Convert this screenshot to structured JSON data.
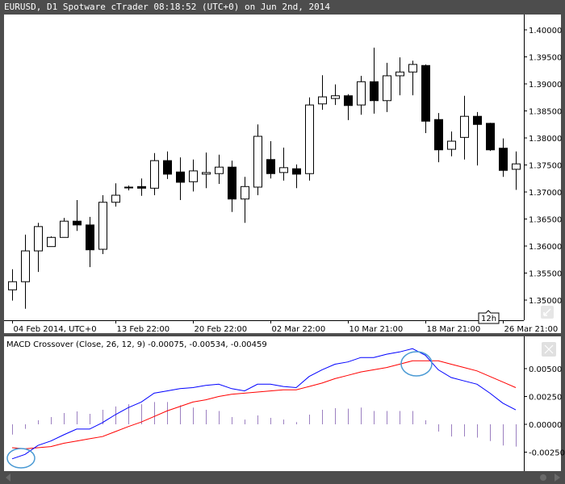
{
  "window": {
    "title": "EURUSD, D1 Spotware cTrader 08:18:52 (UTC+0) on Jun 2nd, 2014"
  },
  "colors": {
    "frame": "#4d4d4d",
    "bullish_body": "#ffffff",
    "bearish_body": "#000000",
    "macd_line": "#0000ff",
    "signal_line": "#ff0000",
    "histogram": "#9b7fc0",
    "annotation_circle": "#4a9ad4"
  },
  "chart_data": [
    {
      "type": "candlestick",
      "symbol": "EURUSD",
      "timeframe": "D1",
      "y_ticks": [
        "1.40000",
        "1.39500",
        "1.39000",
        "1.38500",
        "1.38000",
        "1.37500",
        "1.37000",
        "1.36500",
        "1.36000",
        "1.35500",
        "1.35000"
      ],
      "ylim": [
        1.345,
        1.4
      ],
      "x_tick_labels": [
        "04 Feb 2014, UTC+0",
        "13 Feb 22:00",
        "20 Feb 22:00",
        "02 Mar 22:00",
        "10 Mar 21:00",
        "18 Mar 21:00",
        "26 Mar 21:00"
      ],
      "period_badge": "12h",
      "candles_ohlc": [
        [
          1.3519,
          1.3557,
          1.3499,
          1.3534
        ],
        [
          1.3534,
          1.3621,
          1.3484,
          1.3591
        ],
        [
          1.3591,
          1.3643,
          1.3552,
          1.3636
        ],
        [
          1.3599,
          1.3618,
          1.3599,
          1.3616
        ],
        [
          1.3616,
          1.3652,
          1.3616,
          1.3646
        ],
        [
          1.3646,
          1.3685,
          1.3628,
          1.3639
        ],
        [
          1.3639,
          1.3654,
          1.3561,
          1.3593
        ],
        [
          1.3594,
          1.3694,
          1.3585,
          1.3681
        ],
        [
          1.3681,
          1.3716,
          1.3673,
          1.3694
        ],
        [
          1.3709,
          1.3712,
          1.3703,
          1.3709
        ],
        [
          1.371,
          1.3725,
          1.3693,
          1.3707
        ],
        [
          1.3707,
          1.3772,
          1.3694,
          1.3758
        ],
        [
          1.3758,
          1.3775,
          1.3724,
          1.3733
        ],
        [
          1.3737,
          1.3764,
          1.3685,
          1.3718
        ],
        [
          1.3719,
          1.376,
          1.3701,
          1.3739
        ],
        [
          1.3733,
          1.3773,
          1.3707,
          1.3736
        ],
        [
          1.3734,
          1.3769,
          1.3715,
          1.3746
        ],
        [
          1.3746,
          1.3758,
          1.3663,
          1.3687
        ],
        [
          1.3687,
          1.3728,
          1.3643,
          1.371
        ],
        [
          1.3709,
          1.3825,
          1.3694,
          1.3803
        ],
        [
          1.376,
          1.3794,
          1.3725,
          1.3734
        ],
        [
          1.3736,
          1.3782,
          1.3721,
          1.3745
        ],
        [
          1.3743,
          1.3751,
          1.3707,
          1.3733
        ],
        [
          1.3734,
          1.3875,
          1.3721,
          1.3861
        ],
        [
          1.3863,
          1.3916,
          1.3852,
          1.3876
        ],
        [
          1.3873,
          1.3899,
          1.3861,
          1.3878
        ],
        [
          1.3878,
          1.3881,
          1.3833,
          1.386
        ],
        [
          1.3861,
          1.3915,
          1.3843,
          1.3904
        ],
        [
          1.3904,
          1.3967,
          1.3845,
          1.3869
        ],
        [
          1.3869,
          1.3939,
          1.3848,
          1.3915
        ],
        [
          1.3915,
          1.3949,
          1.3879,
          1.3922
        ],
        [
          1.3922,
          1.3943,
          1.3879,
          1.3936
        ],
        [
          1.3934,
          1.3936,
          1.3809,
          1.3831
        ],
        [
          1.3834,
          1.3846,
          1.3755,
          1.3778
        ],
        [
          1.3779,
          1.3812,
          1.3766,
          1.3794
        ],
        [
          1.3801,
          1.3878,
          1.376,
          1.384
        ],
        [
          1.384,
          1.3848,
          1.3749,
          1.3825
        ],
        [
          1.3827,
          1.3828,
          1.3776,
          1.3778
        ],
        [
          1.3781,
          1.3799,
          1.3728,
          1.374
        ],
        [
          1.3742,
          1.3775,
          1.3704,
          1.3752
        ]
      ]
    },
    {
      "type": "line",
      "title": "MACD Crossover (Close, 26, 12, 9) -0.00075, -0.00534, -0.00459",
      "y_ticks": [
        "0.00500",
        "0.00250",
        "0.00000",
        "-0.00250"
      ],
      "series": [
        {
          "role": "macd",
          "values": [
            -0.0031,
            -0.0027,
            -0.0019,
            -0.0015,
            -0.00094,
            -0.00043,
            -0.00043,
            0.00015,
            0.00087,
            0.0015,
            0.002,
            0.0028,
            0.003,
            0.0032,
            0.0033,
            0.0035,
            0.0036,
            0.0032,
            0.003,
            0.0036,
            0.0036,
            0.0034,
            0.0033,
            0.0043,
            0.0049,
            0.0054,
            0.0056,
            0.006,
            0.006,
            0.0063,
            0.0065,
            0.0068,
            0.0062,
            0.0049,
            0.0042,
            0.0039,
            0.0036,
            0.0028,
            0.0019,
            0.0013
          ]
        },
        {
          "role": "signal",
          "values": [
            -0.0021,
            -0.0022,
            -0.0021,
            -0.002,
            -0.0017,
            -0.0015,
            -0.0013,
            -0.0011,
            -0.00065,
            -0.0002,
            0.0002,
            0.0007,
            0.0012,
            0.0016,
            0.002,
            0.0022,
            0.0025,
            0.0027,
            0.0028,
            0.0029,
            0.003,
            0.0031,
            0.0031,
            0.0034,
            0.0037,
            0.0041,
            0.0044,
            0.0047,
            0.0049,
            0.0051,
            0.0054,
            0.0057,
            0.0057,
            0.0057,
            0.0054,
            0.0051,
            0.0048,
            0.0043,
            0.0038,
            0.0033
          ]
        },
        {
          "role": "histogram",
          "type": "bar",
          "values": [
            -0.00092,
            -0.00041,
            0.00036,
            0.00065,
            0.00101,
            0.00116,
            0.00094,
            0.0013,
            0.0016,
            0.0018,
            0.0018,
            0.002,
            0.002,
            0.0017,
            0.0015,
            0.0013,
            0.0012,
            0.00065,
            0.00043,
            0.0008,
            0.00058,
            0.00043,
            0.0002,
            0.00087,
            0.0013,
            0.00145,
            0.0014,
            0.0015,
            0.0012,
            0.0012,
            0.0012,
            0.0012,
            0.00036,
            -0.00065,
            -0.0011,
            -0.0011,
            -0.0012,
            -0.0015,
            -0.0019,
            -0.002
          ]
        }
      ],
      "annotations": [
        "bullish-crossover-circle",
        "bearish-crossover-circle"
      ]
    }
  ]
}
